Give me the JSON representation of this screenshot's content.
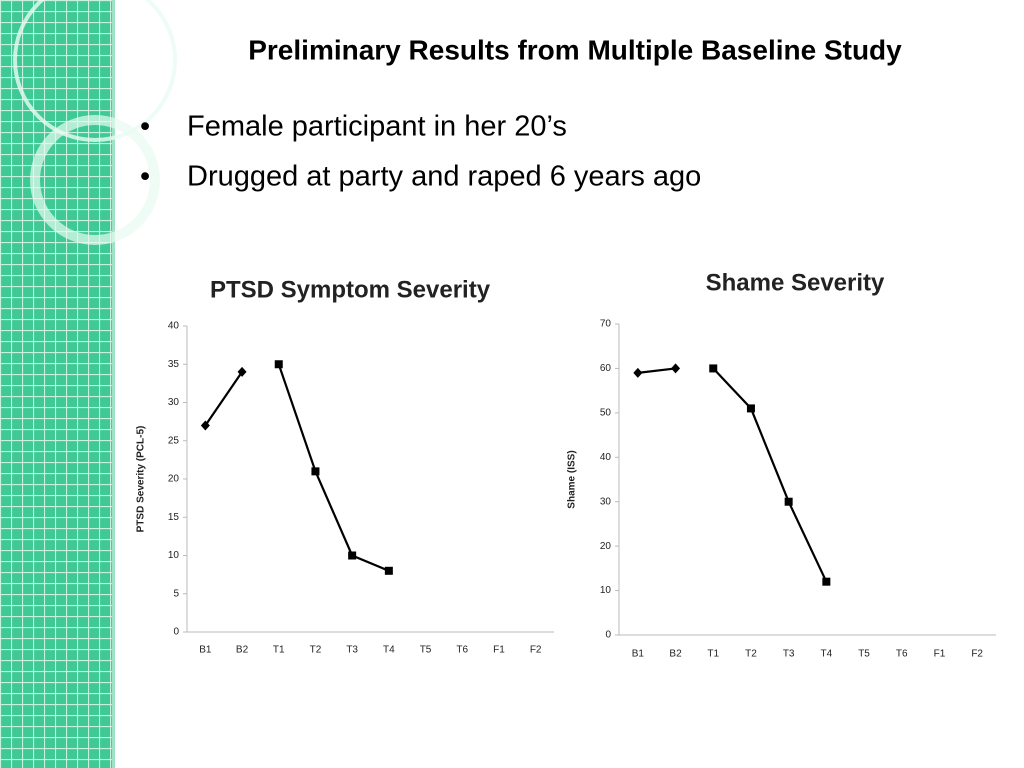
{
  "slide": {
    "title": "Preliminary Results from Multiple Baseline Study",
    "bullets": [
      "Female participant in her 20’s",
      "Drugged at party and raped 6 years ago"
    ]
  },
  "chart_data": [
    {
      "type": "line",
      "title": "PTSD Symptom Severity",
      "y_label": "PTSD Severity (PCL-5)",
      "categories": [
        "B1",
        "B2",
        "T1",
        "T2",
        "T3",
        "T4",
        "T5",
        "T6",
        "F1",
        "F2"
      ],
      "series": [
        {
          "color": "#000000",
          "marker": "diamond",
          "values": [
            27,
            34,
            null,
            null,
            null,
            null,
            null,
            null,
            null,
            null
          ]
        },
        {
          "color": "#000000",
          "marker": "square",
          "values": [
            null,
            null,
            35,
            21,
            10,
            8,
            null,
            null,
            null,
            null
          ]
        }
      ],
      "ylim": [
        0,
        40
      ],
      "yticks": [
        0,
        5,
        10,
        15,
        20,
        25,
        30,
        35,
        40
      ],
      "grid": false
    },
    {
      "type": "line",
      "title": "Shame Severity",
      "y_label": "Shame (ISS)",
      "categories": [
        "B1",
        "B2",
        "T1",
        "T2",
        "T3",
        "T4",
        "T5",
        "T6",
        "F1",
        "F2"
      ],
      "series": [
        {
          "color": "#000000",
          "marker": "diamond",
          "values": [
            59,
            60,
            null,
            null,
            null,
            null,
            null,
            null,
            null,
            null
          ]
        },
        {
          "color": "#000000",
          "marker": "square",
          "values": [
            null,
            null,
            60,
            51,
            30,
            12,
            null,
            null,
            null,
            null
          ]
        }
      ],
      "ylim": [
        0,
        70
      ],
      "yticks": [
        0,
        10,
        20,
        30,
        40,
        50,
        60,
        70
      ],
      "grid": false
    }
  ]
}
